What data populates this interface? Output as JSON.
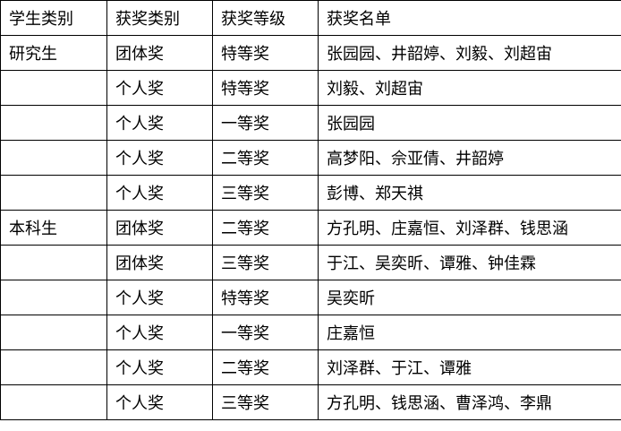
{
  "table": {
    "headers": [
      "学生类别",
      "获奖类别",
      "获奖等级",
      "获奖名单"
    ],
    "rows": [
      [
        "研究生",
        "团体奖",
        "特等奖",
        "张园园、井韶婷、刘毅、刘超宙"
      ],
      [
        "",
        "个人奖",
        "特等奖",
        "刘毅、刘超宙"
      ],
      [
        "",
        "个人奖",
        "一等奖",
        "张园园"
      ],
      [
        "",
        "个人奖",
        "二等奖",
        "高梦阳、佘亚倩、井韶婷"
      ],
      [
        "",
        "个人奖",
        "三等奖",
        "彭博、郑天祺"
      ],
      [
        "本科生",
        "团体奖",
        "二等奖",
        "方孔明、庄嘉恒、刘泽群、钱思涵"
      ],
      [
        "",
        "团体奖",
        "三等奖",
        "于江、吴奕昕、谭雅、钟佳霖"
      ],
      [
        "",
        "个人奖",
        "特等奖",
        "吴奕昕"
      ],
      [
        "",
        "个人奖",
        "一等奖",
        "庄嘉恒"
      ],
      [
        "",
        "个人奖",
        "二等奖",
        "刘泽群、于江、谭雅"
      ],
      [
        "",
        "个人奖",
        "三等奖",
        "方孔明、钱思涵、曹泽鸿、李鼎"
      ]
    ]
  }
}
